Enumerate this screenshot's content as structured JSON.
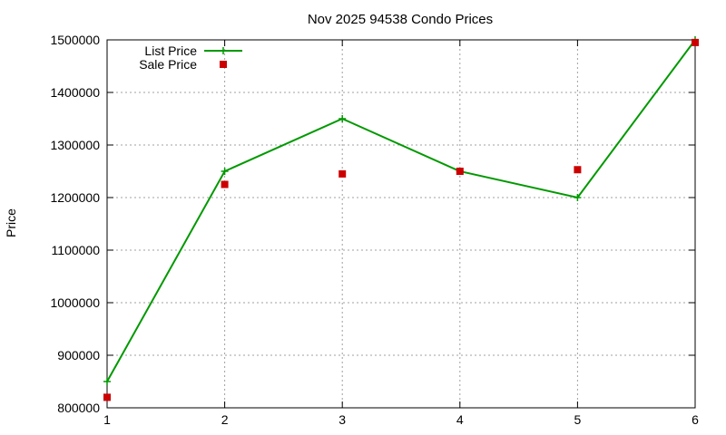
{
  "chart_data": {
    "type": "line",
    "title": "Nov 2025 94538 Condo Prices",
    "xlabel": "",
    "ylabel": "Price",
    "x": [
      1,
      2,
      3,
      4,
      5,
      6
    ],
    "xlim": [
      1,
      6
    ],
    "ylim": [
      800000,
      1500000
    ],
    "y_ticks": [
      800000,
      900000,
      1000000,
      1100000,
      1200000,
      1300000,
      1400000,
      1500000
    ],
    "x_ticks": [
      1,
      2,
      3,
      4,
      5,
      6
    ],
    "grid": true,
    "legend_position": "top-left",
    "series": [
      {
        "name": "List Price",
        "style": "line-with-plus",
        "color": "#009900",
        "values": [
          850000,
          1250000,
          1350000,
          1250000,
          1200000,
          1500000
        ]
      },
      {
        "name": "Sale Price",
        "style": "square-points",
        "color": "#cc0000",
        "values": [
          820000,
          1225000,
          1245000,
          1250000,
          1253000,
          1495000
        ]
      }
    ]
  }
}
